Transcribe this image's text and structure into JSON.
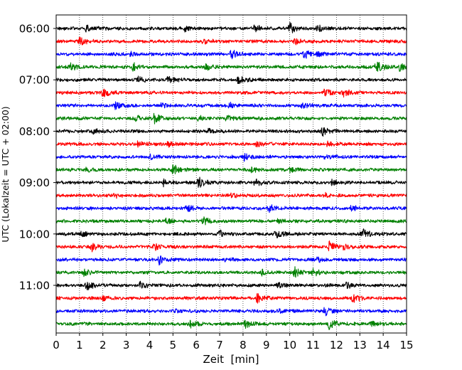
{
  "chart_data": {
    "type": "line",
    "title": "",
    "xlabel": "Zeit  [min]",
    "ylabel": "UTC (Lokalzeit = UTC + 02:00)",
    "xlim": [
      0,
      15
    ],
    "x_ticks": [
      "0",
      "1",
      "2",
      "3",
      "4",
      "5",
      "6",
      "7",
      "8",
      "9",
      "10",
      "11",
      "12",
      "13",
      "14",
      "15"
    ],
    "y_ticks": [
      {
        "label": "06:00",
        "row": 0
      },
      {
        "label": "07:00",
        "row": 4
      },
      {
        "label": "08:00",
        "row": 8
      },
      {
        "label": "09:00",
        "row": 12
      },
      {
        "label": "10:00",
        "row": 16
      },
      {
        "label": "11:00",
        "row": 20
      }
    ],
    "row_minutes": 15,
    "grid": "vertical-dotted",
    "series_colors": [
      "#000000",
      "#ff0000",
      "#0000ff",
      "#008000"
    ],
    "rows": [
      {
        "start": "06:00",
        "color": "#000000",
        "events": [
          {
            "t": 1.3,
            "a": 0.5
          },
          {
            "t": 5.5,
            "a": 0.45
          },
          {
            "t": 8.5,
            "a": 0.55
          },
          {
            "t": 10.0,
            "a": 0.9
          },
          {
            "t": 11.2,
            "a": 0.5
          }
        ]
      },
      {
        "start": "06:15",
        "color": "#ff0000",
        "events": [
          {
            "t": 1.0,
            "a": 0.6
          },
          {
            "t": 6.3,
            "a": 0.45
          },
          {
            "t": 10.2,
            "a": 0.4
          }
        ]
      },
      {
        "start": "06:30",
        "color": "#0000ff",
        "events": [
          {
            "t": 3.2,
            "a": 0.35
          },
          {
            "t": 7.5,
            "a": 0.7
          },
          {
            "t": 10.6,
            "a": 0.75
          },
          {
            "t": 11.2,
            "a": 0.4
          }
        ]
      },
      {
        "start": "06:45",
        "color": "#008000",
        "events": [
          {
            "t": 0.6,
            "a": 0.55
          },
          {
            "t": 3.3,
            "a": 0.6
          },
          {
            "t": 6.4,
            "a": 0.4
          },
          {
            "t": 13.7,
            "a": 0.9
          },
          {
            "t": 14.7,
            "a": 0.55
          }
        ]
      },
      {
        "start": "07:00",
        "color": "#000000",
        "events": [
          {
            "t": 3.5,
            "a": 0.45
          },
          {
            "t": 4.8,
            "a": 0.5
          },
          {
            "t": 7.8,
            "a": 0.6
          }
        ]
      },
      {
        "start": "07:15",
        "color": "#ff0000",
        "events": [
          {
            "t": 2.0,
            "a": 0.7
          },
          {
            "t": 11.5,
            "a": 0.5
          },
          {
            "t": 12.3,
            "a": 0.6
          }
        ]
      },
      {
        "start": "07:30",
        "color": "#0000ff",
        "events": [
          {
            "t": 2.5,
            "a": 0.6
          },
          {
            "t": 4.5,
            "a": 0.35
          },
          {
            "t": 7.4,
            "a": 0.4
          },
          {
            "t": 10.5,
            "a": 0.4
          }
        ]
      },
      {
        "start": "07:45",
        "color": "#008000",
        "events": [
          {
            "t": 3.4,
            "a": 0.4
          },
          {
            "t": 4.2,
            "a": 0.75
          },
          {
            "t": 6.1,
            "a": 0.3
          },
          {
            "t": 7.3,
            "a": 0.35
          }
        ]
      },
      {
        "start": "08:00",
        "color": "#000000",
        "events": [
          {
            "t": 1.6,
            "a": 0.3
          },
          {
            "t": 6.5,
            "a": 0.35
          },
          {
            "t": 11.4,
            "a": 0.65
          }
        ]
      },
      {
        "start": "08:15",
        "color": "#ff0000",
        "events": [
          {
            "t": 3.5,
            "a": 0.45
          },
          {
            "t": 4.8,
            "a": 0.35
          },
          {
            "t": 8.6,
            "a": 0.4
          },
          {
            "t": 11.6,
            "a": 0.35
          }
        ]
      },
      {
        "start": "08:30",
        "color": "#0000ff",
        "events": [
          {
            "t": 4.0,
            "a": 0.45
          },
          {
            "t": 8.0,
            "a": 0.65
          },
          {
            "t": 11.5,
            "a": 0.3
          }
        ]
      },
      {
        "start": "08:45",
        "color": "#008000",
        "events": [
          {
            "t": 1.3,
            "a": 0.3
          },
          {
            "t": 5.0,
            "a": 0.75
          },
          {
            "t": 8.3,
            "a": 0.45
          },
          {
            "t": 10.0,
            "a": 0.35
          }
        ]
      },
      {
        "start": "09:00",
        "color": "#000000",
        "events": [
          {
            "t": 4.6,
            "a": 0.45
          },
          {
            "t": 6.1,
            "a": 0.8
          },
          {
            "t": 8.5,
            "a": 0.55
          },
          {
            "t": 11.8,
            "a": 0.35
          }
        ]
      },
      {
        "start": "09:15",
        "color": "#ff0000",
        "events": [
          {
            "t": 2.5,
            "a": 0.3
          },
          {
            "t": 7.5,
            "a": 0.35
          },
          {
            "t": 11.5,
            "a": 0.3
          }
        ]
      },
      {
        "start": "09:30",
        "color": "#0000ff",
        "events": [
          {
            "t": 5.6,
            "a": 0.55
          },
          {
            "t": 9.1,
            "a": 0.6
          },
          {
            "t": 12.6,
            "a": 0.5
          }
        ]
      },
      {
        "start": "09:45",
        "color": "#008000",
        "events": [
          {
            "t": 4.7,
            "a": 0.4
          },
          {
            "t": 6.3,
            "a": 0.6
          },
          {
            "t": 9.5,
            "a": 0.3
          }
        ]
      },
      {
        "start": "10:00",
        "color": "#000000",
        "events": [
          {
            "t": 1.1,
            "a": 0.4
          },
          {
            "t": 7.0,
            "a": 0.45
          },
          {
            "t": 9.4,
            "a": 0.8
          },
          {
            "t": 13.1,
            "a": 0.75
          }
        ]
      },
      {
        "start": "10:15",
        "color": "#ff0000",
        "events": [
          {
            "t": 1.5,
            "a": 0.85
          },
          {
            "t": 4.2,
            "a": 0.5
          },
          {
            "t": 11.7,
            "a": 0.8
          },
          {
            "t": 12.3,
            "a": 0.4
          }
        ]
      },
      {
        "start": "10:30",
        "color": "#0000ff",
        "events": [
          {
            "t": 4.4,
            "a": 0.7
          },
          {
            "t": 7.2,
            "a": 0.3
          },
          {
            "t": 11.2,
            "a": 0.35
          }
        ]
      },
      {
        "start": "10:45",
        "color": "#008000",
        "events": [
          {
            "t": 1.2,
            "a": 0.55
          },
          {
            "t": 8.8,
            "a": 0.4
          },
          {
            "t": 10.2,
            "a": 0.8
          },
          {
            "t": 11.0,
            "a": 0.5
          }
        ]
      },
      {
        "start": "11:00",
        "color": "#000000",
        "events": [
          {
            "t": 1.3,
            "a": 0.85
          },
          {
            "t": 3.6,
            "a": 0.45
          },
          {
            "t": 9.5,
            "a": 0.35
          },
          {
            "t": 12.4,
            "a": 0.4
          }
        ]
      },
      {
        "start": "11:15",
        "color": "#ff0000",
        "events": [
          {
            "t": 2.0,
            "a": 0.3
          },
          {
            "t": 8.6,
            "a": 0.65
          },
          {
            "t": 12.7,
            "a": 0.7
          }
        ]
      },
      {
        "start": "11:30",
        "color": "#0000ff",
        "events": [
          {
            "t": 5.0,
            "a": 0.3
          },
          {
            "t": 9.5,
            "a": 0.3
          },
          {
            "t": 11.5,
            "a": 0.6
          }
        ]
      },
      {
        "start": "11:45",
        "color": "#008000",
        "events": [
          {
            "t": 5.7,
            "a": 0.55
          },
          {
            "t": 8.1,
            "a": 0.55
          },
          {
            "t": 11.7,
            "a": 0.85
          },
          {
            "t": 13.5,
            "a": 0.3
          }
        ]
      }
    ]
  }
}
